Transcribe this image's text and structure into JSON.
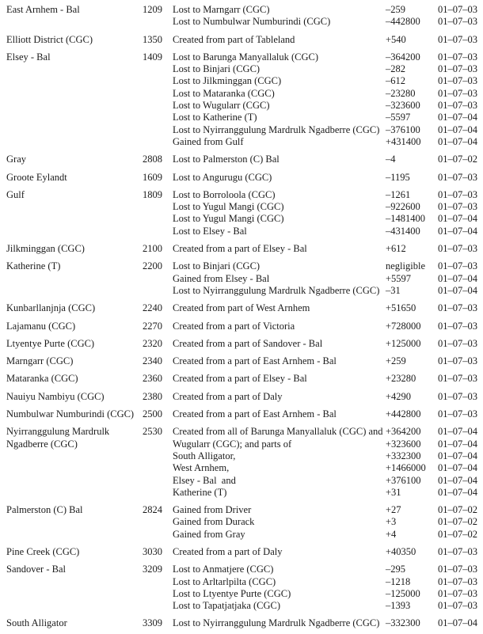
{
  "colors": {
    "background": "#ffffff",
    "text": "#1b1b1b"
  },
  "table": {
    "columns": [
      "area_name",
      "area_code",
      "change_description",
      "change_value",
      "change_date"
    ],
    "groups": [
      {
        "name": "East Arnhem - Bal",
        "code": "1209",
        "changes": [
          {
            "desc": "Lost to Marngarr (CGC)",
            "value": "–259",
            "date": "01–07–03"
          },
          {
            "desc": "Lost to Numbulwar Numburindi (CGC)",
            "value": "–442800",
            "date": "01–07–03"
          }
        ]
      },
      {
        "name": "Elliott District (CGC)",
        "code": "1350",
        "changes": [
          {
            "desc": "Created from part of Tableland",
            "value": "+540",
            "date": "01–07–03"
          }
        ]
      },
      {
        "name": "Elsey - Bal",
        "code": "1409",
        "changes": [
          {
            "desc": "Lost to Barunga Manyallaluk (CGC)",
            "value": "–364200",
            "date": "01–07–03"
          },
          {
            "desc": "Lost to Binjari (CGC)",
            "value": "–282",
            "date": "01–07–03"
          },
          {
            "desc": "Lost to Jilkminggan (CGC)",
            "value": "–612",
            "date": "01–07–03"
          },
          {
            "desc": "Lost to Mataranka (CGC)",
            "value": "–23280",
            "date": "01–07–03"
          },
          {
            "desc": "Lost to Wugularr (CGC)",
            "value": "–323600",
            "date": "01–07–03"
          },
          {
            "desc": "Lost to Katherine (T)",
            "value": "–5597",
            "date": "01–07–04"
          },
          {
            "desc": "Lost to Nyirranggulung Mardrulk Ngadberre (CGC)",
            "value": "–376100",
            "date": "01–07–04"
          },
          {
            "desc": "Gained from Gulf",
            "value": "+431400",
            "date": "01–07–04"
          }
        ]
      },
      {
        "name": "Gray",
        "code": "2808",
        "changes": [
          {
            "desc": "Lost to Palmerston (C) Bal",
            "value": "–4",
            "date": "01–07–02"
          }
        ]
      },
      {
        "name": "Groote Eylandt",
        "code": "1609",
        "changes": [
          {
            "desc": "Lost to Angurugu (CGC)",
            "value": "–1195",
            "date": "01–07–03"
          }
        ]
      },
      {
        "name": "Gulf",
        "code": "1809",
        "changes": [
          {
            "desc": "Lost to Borroloola (CGC)",
            "value": "–1261",
            "date": "01–07–03"
          },
          {
            "desc": "Lost to Yugul Mangi (CGC)",
            "value": "–922600",
            "date": "01–07–03"
          },
          {
            "desc": "Lost to Yugul Mangi (CGC)",
            "value": "–1481400",
            "date": "01–07–04"
          },
          {
            "desc": "Lost to Elsey - Bal",
            "value": "–431400",
            "date": "01–07–04"
          }
        ]
      },
      {
        "name": "Jilkminggan (CGC)",
        "code": "2100",
        "changes": [
          {
            "desc": "Created from a part of Elsey - Bal",
            "value": "+612",
            "date": "01–07–03"
          }
        ]
      },
      {
        "name": "Katherine (T)",
        "code": "2200",
        "changes": [
          {
            "desc": "Lost to Binjari (CGC)",
            "value": "negligible",
            "date": "01–07–03"
          },
          {
            "desc": "Gained from Elsey - Bal",
            "value": "+5597",
            "date": "01–07–04"
          },
          {
            "desc": "Lost to Nyirranggulung Mardrulk Ngadberre (CGC)",
            "value": "–31",
            "date": "01–07–04"
          }
        ]
      },
      {
        "name": "Kunbarllanjnja (CGC)",
        "code": "2240",
        "changes": [
          {
            "desc": "Created from part of West Arnhem",
            "value": "+51650",
            "date": "01–07–03"
          }
        ]
      },
      {
        "name": "Lajamanu (CGC)",
        "code": "2270",
        "changes": [
          {
            "desc": "Created from a part of Victoria",
            "value": "+728000",
            "date": "01–07–03"
          }
        ]
      },
      {
        "name": "Ltyentye Purte (CGC)",
        "code": "2320",
        "changes": [
          {
            "desc": "Created from a part of Sandover - Bal",
            "value": "+125000",
            "date": "01–07–03"
          }
        ]
      },
      {
        "name": "Marngarr (CGC)",
        "code": "2340",
        "changes": [
          {
            "desc": "Created from a part of East Arnhem - Bal",
            "value": "+259",
            "date": "01–07–03"
          }
        ]
      },
      {
        "name": "Mataranka (CGC)",
        "code": "2360",
        "changes": [
          {
            "desc": "Created from a part of Elsey - Bal",
            "value": "+23280",
            "date": "01–07–03"
          }
        ]
      },
      {
        "name": "Nauiyu Nambiyu (CGC)",
        "code": "2380",
        "changes": [
          {
            "desc": "Created from a part of Daly",
            "value": "+4290",
            "date": "01–07–03"
          }
        ]
      },
      {
        "name": "Numbulwar Numburindi (CGC)",
        "code": "2500",
        "changes": [
          {
            "desc": "Created from a part of East Arnhem - Bal",
            "value": "+442800",
            "date": "01–07–03"
          }
        ]
      },
      {
        "name": "Nyirranggulung Mardrulk Ngadberre (CGC)",
        "code": "2530",
        "changes": [
          {
            "desc": "Created from all of Barunga Manyallaluk (CGC) and",
            "value": "+364200",
            "date": "01–07–04"
          },
          {
            "desc": "Wugularr (CGC); and parts of",
            "value": "+323600",
            "date": "01–07–04"
          },
          {
            "desc": "South Alligator,",
            "value": "+332300",
            "date": "01–07–04"
          },
          {
            "desc": "West Arnhem,",
            "value": "+1466000",
            "date": "01–07–04"
          },
          {
            "desc": "Elsey - Bal  and",
            "value": "+376100",
            "date": "01–07–04"
          },
          {
            "desc": "Katherine (T)",
            "value": "+31",
            "date": "01–07–04"
          }
        ]
      },
      {
        "name": "Palmerston (C) Bal",
        "code": "2824",
        "changes": [
          {
            "desc": "Gained from Driver",
            "value": "+27",
            "date": "01–07–02"
          },
          {
            "desc": "Gained from Durack",
            "value": "+3",
            "date": "01–07–02"
          },
          {
            "desc": "Gained from Gray",
            "value": "+4",
            "date": "01–07–02"
          }
        ]
      },
      {
        "name": "Pine Creek (CGC)",
        "code": "3030",
        "changes": [
          {
            "desc": "Created from a part of Daly",
            "value": "+40350",
            "date": "01–07–03"
          }
        ]
      },
      {
        "name": "Sandover - Bal",
        "code": "3209",
        "changes": [
          {
            "desc": "Lost to Anmatjere (CGC)",
            "value": "–295",
            "date": "01–07–03"
          },
          {
            "desc": "Lost to Arltarlpilta (CGC)",
            "value": "–1218",
            "date": "01–07–03"
          },
          {
            "desc": "Lost to Ltyentye Purte (CGC)",
            "value": "–125000",
            "date": "01–07–03"
          },
          {
            "desc": "Lost to Tapatjatjaka (CGC)",
            "value": "–1393",
            "date": "01–07–03"
          }
        ]
      },
      {
        "name": "South Alligator",
        "code": "3309",
        "changes": [
          {
            "desc": "Lost to Nyirranggulung Mardrulk Ngadberre (CGC)",
            "value": "–332300",
            "date": "01–07–04"
          }
        ]
      }
    ]
  }
}
